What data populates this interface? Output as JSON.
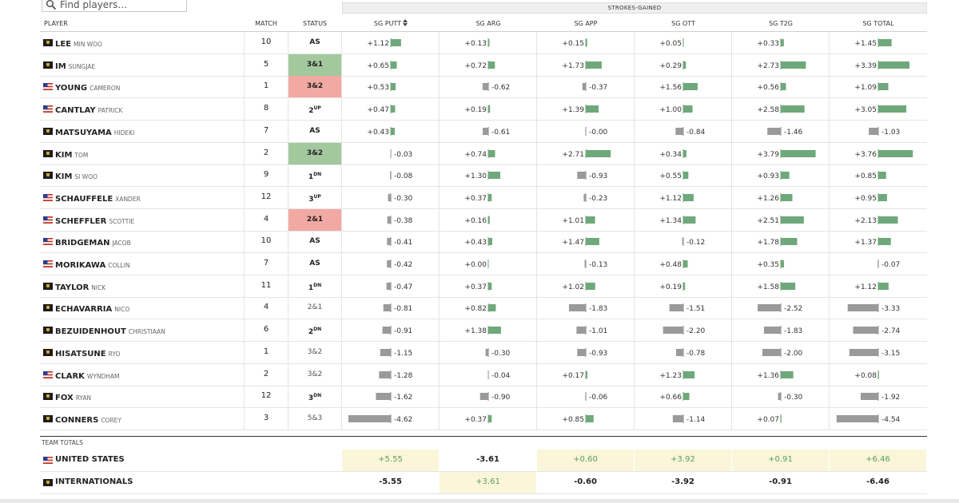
{
  "search": {
    "placeholder": "Find players..."
  },
  "strokes_gained_label": "STROKES-GAINED",
  "columns": {
    "player": "PLAYER",
    "match": "MATCH",
    "status": "STATUS",
    "sg": [
      "SG PUTT",
      "SG ARG",
      "SG APP",
      "SG OTT",
      "SG T2G",
      "SG TOTAL"
    ],
    "sort_icon": "sort-arrows-icon"
  },
  "colors": {
    "positive_bar": "#6fa87a",
    "negative_bar": "#9a9a9a",
    "win_status": "#a3c89e",
    "loss_status": "#f3a9a3",
    "team_highlight": "#fbf6d9",
    "team_positive_text": "#5a9c5a"
  },
  "players": [
    {
      "last": "LEE",
      "first": "MIN WOO",
      "team": "intl",
      "match": "10",
      "status": {
        "text": "AS",
        "type": "plain"
      },
      "sg": [
        "+1.12",
        "+0.13",
        "+0.15",
        "+0.05",
        "+0.33",
        "+1.45"
      ]
    },
    {
      "last": "IM",
      "first": "SUNGJAE",
      "team": "intl",
      "match": "5",
      "status": {
        "text": "3&1",
        "type": "win"
      },
      "sg": [
        "+0.65",
        "+0.72",
        "+1.73",
        "+0.29",
        "+2.73",
        "+3.39"
      ]
    },
    {
      "last": "YOUNG",
      "first": "CAMERON",
      "team": "usa",
      "match": "1",
      "status": {
        "text": "3&2",
        "type": "loss"
      },
      "sg": [
        "+0.53",
        "-0.62",
        "-0.37",
        "+1.56",
        "+0.56",
        "+1.09"
      ]
    },
    {
      "last": "CANTLAY",
      "first": "PATRICK",
      "team": "usa",
      "match": "8",
      "status": {
        "text": "2",
        "sup": "UP",
        "type": "plain"
      },
      "sg": [
        "+0.47",
        "+0.19",
        "+1.39",
        "+1.00",
        "+2.58",
        "+3.05"
      ]
    },
    {
      "last": "MATSUYAMA",
      "first": "HIDEKI",
      "team": "intl",
      "match": "7",
      "status": {
        "text": "AS",
        "type": "plain"
      },
      "sg": [
        "+0.43",
        "-0.61",
        "-0.00",
        "-0.84",
        "-1.46",
        "-1.03"
      ]
    },
    {
      "last": "KIM",
      "first": "TOM",
      "team": "intl",
      "match": "2",
      "status": {
        "text": "3&2",
        "type": "win"
      },
      "sg": [
        "-0.03",
        "+0.74",
        "+2.71",
        "+0.34",
        "+3.79",
        "+3.76"
      ]
    },
    {
      "last": "KIM",
      "first": "SI WOO",
      "team": "intl",
      "match": "9",
      "status": {
        "text": "1",
        "sup": "DN",
        "type": "plain"
      },
      "sg": [
        "-0.08",
        "+1.30",
        "-0.93",
        "+0.55",
        "+0.93",
        "+0.85"
      ]
    },
    {
      "last": "SCHAUFFELE",
      "first": "XANDER",
      "team": "usa",
      "match": "12",
      "status": {
        "text": "3",
        "sup": "UP",
        "type": "plain"
      },
      "sg": [
        "-0.30",
        "+0.37",
        "-0.23",
        "+1.12",
        "+1.26",
        "+0.95"
      ]
    },
    {
      "last": "SCHEFFLER",
      "first": "SCOTTIE",
      "team": "usa",
      "match": "4",
      "status": {
        "text": "2&1",
        "type": "loss"
      },
      "sg": [
        "-0.38",
        "+0.16",
        "+1.01",
        "+1.34",
        "+2.51",
        "+2.13"
      ]
    },
    {
      "last": "BRIDGEMAN",
      "first": "JACOB",
      "team": "usa",
      "match": "10",
      "status": {
        "text": "AS",
        "type": "plain"
      },
      "sg": [
        "-0.41",
        "+0.43",
        "+1.47",
        "-0.12",
        "+1.78",
        "+1.37"
      ]
    },
    {
      "last": "MORIKAWA",
      "first": "COLLIN",
      "team": "usa",
      "match": "7",
      "status": {
        "text": "AS",
        "type": "plain"
      },
      "sg": [
        "-0.42",
        "+0.00",
        "-0.13",
        "+0.48",
        "+0.35",
        "-0.07"
      ]
    },
    {
      "last": "TAYLOR",
      "first": "NICK",
      "team": "intl",
      "match": "11",
      "status": {
        "text": "1",
        "sup": "DN",
        "type": "plain"
      },
      "sg": [
        "-0.47",
        "+0.37",
        "+1.02",
        "+0.19",
        "+1.58",
        "+1.12"
      ]
    },
    {
      "last": "ECHAVARRIA",
      "first": "NICO",
      "team": "intl",
      "match": "4",
      "status": {
        "text": "2&1",
        "type": "done"
      },
      "sg": [
        "-0.81",
        "+0.82",
        "-1.83",
        "-1.51",
        "-2.52",
        "-3.33"
      ]
    },
    {
      "last": "BEZUIDENHOUT",
      "first": "CHRISTIAAN",
      "team": "intl",
      "match": "6",
      "status": {
        "text": "2",
        "sup": "DN",
        "type": "plain"
      },
      "sg": [
        "-0.91",
        "+1.38",
        "-1.01",
        "-2.20",
        "-1.83",
        "-2.74"
      ]
    },
    {
      "last": "HISATSUNE",
      "first": "RYO",
      "team": "intl",
      "match": "1",
      "status": {
        "text": "3&2",
        "type": "done"
      },
      "sg": [
        "-1.15",
        "-0.30",
        "-0.93",
        "-0.78",
        "-2.00",
        "-3.15"
      ]
    },
    {
      "last": "CLARK",
      "first": "WYNDHAM",
      "team": "usa",
      "match": "2",
      "status": {
        "text": "3&2",
        "type": "done"
      },
      "sg": [
        "-1.28",
        "-0.04",
        "+0.17",
        "+1.23",
        "+1.36",
        "+0.08"
      ]
    },
    {
      "last": "FOX",
      "first": "RYAN",
      "team": "intl",
      "match": "12",
      "status": {
        "text": "3",
        "sup": "DN",
        "type": "plain"
      },
      "sg": [
        "-1.62",
        "-0.90",
        "-0.06",
        "+0.66",
        "-0.30",
        "-1.92"
      ]
    },
    {
      "last": "CONNERS",
      "first": "COREY",
      "team": "intl",
      "match": "3",
      "status": {
        "text": "5&3",
        "type": "done"
      },
      "sg": [
        "-4.62",
        "+0.37",
        "+0.85",
        "-1.14",
        "+0.07",
        "-4.54"
      ]
    }
  ],
  "team_totals": {
    "label": "TEAM TOTALS",
    "teams": [
      {
        "name": "UNITED STATES",
        "team": "usa",
        "values": [
          "+5.55",
          "-3.61",
          "+0.60",
          "+3.92",
          "+0.91",
          "+6.46"
        ]
      },
      {
        "name": "INTERNATIONALS",
        "team": "intl",
        "values": [
          "-5.55",
          "+3.61",
          "-0.60",
          "-3.92",
          "-0.91",
          "-6.46"
        ]
      }
    ]
  }
}
